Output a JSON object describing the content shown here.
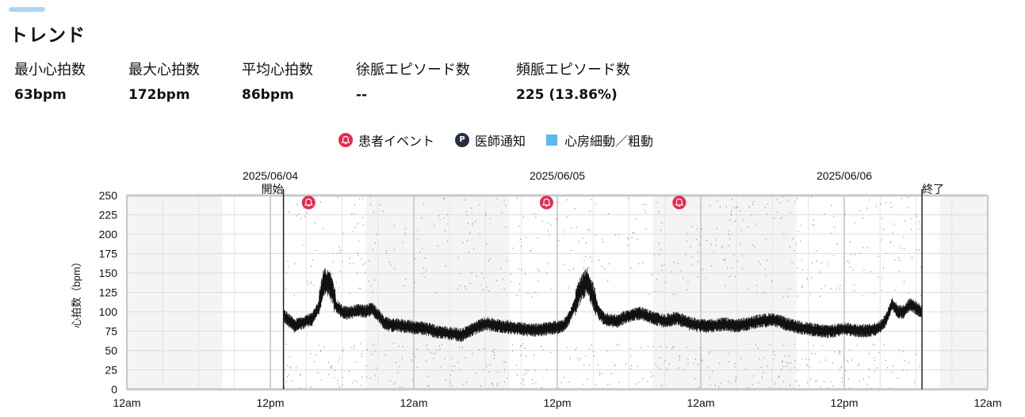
{
  "header": {
    "title": "トレンド"
  },
  "stats": [
    {
      "label": "最小心拍数",
      "value": "63bpm"
    },
    {
      "label": "最大心拍数",
      "value": "172bpm"
    },
    {
      "label": "平均心拍数",
      "value": "86bpm"
    },
    {
      "label": "徐脈エピソード数",
      "value": "--"
    },
    {
      "label": "頻脈エピソード数",
      "value": "225 (13.86%)"
    }
  ],
  "legend": {
    "patient_event": "患者イベント",
    "doctor_notice": "医師通知",
    "doctor_badge": "P",
    "af_label": "心房細動／粗動"
  },
  "colors": {
    "accent_bar": "#a9d6f3",
    "patient_event": "#e8284f",
    "doctor_notice": "#262f40",
    "af": "#5cb8f0",
    "trace": "#111111",
    "shading": "#f4f4f4"
  },
  "chart_data": {
    "type": "scatter",
    "ylabel": "心拍数（bpm）",
    "ylim": [
      0,
      250
    ],
    "yticks": [
      0,
      25,
      50,
      75,
      100,
      125,
      150,
      175,
      200,
      225,
      250
    ],
    "xlim_hours": [
      0,
      72
    ],
    "x_tick_labels": [
      "12am",
      "12pm",
      "12am",
      "12pm",
      "12am",
      "12pm",
      "12am"
    ],
    "date_labels": [
      {
        "hour": 12,
        "text": "2025/06/04"
      },
      {
        "hour": 36,
        "text": "2025/06/05"
      },
      {
        "hour": 60,
        "text": "2025/06/06"
      }
    ],
    "shaded_ranges_hours": [
      [
        0,
        8
      ],
      [
        20,
        32
      ],
      [
        44,
        56
      ],
      [
        68,
        72
      ]
    ],
    "markers": [
      {
        "hour": 13.1,
        "text": "開始"
      },
      {
        "hour": 66.5,
        "text": "終了"
      }
    ],
    "patient_events_hours": [
      15.2,
      35.1,
      46.2
    ],
    "hr_trend": [
      [
        13.1,
        95
      ],
      [
        13.5,
        90
      ],
      [
        14.0,
        82
      ],
      [
        14.5,
        85
      ],
      [
        15.0,
        88
      ],
      [
        15.5,
        90
      ],
      [
        16.0,
        105
      ],
      [
        16.5,
        140
      ],
      [
        17.0,
        135
      ],
      [
        17.5,
        108
      ],
      [
        18.0,
        100
      ],
      [
        18.5,
        98
      ],
      [
        19.0,
        100
      ],
      [
        19.5,
        102
      ],
      [
        20.0,
        100
      ],
      [
        20.5,
        104
      ],
      [
        21.0,
        96
      ],
      [
        21.5,
        86
      ],
      [
        22.0,
        83
      ],
      [
        23.0,
        82
      ],
      [
        24.0,
        80
      ],
      [
        25.0,
        78
      ],
      [
        26.0,
        74
      ],
      [
        27.0,
        72
      ],
      [
        28.0,
        70
      ],
      [
        29.0,
        78
      ],
      [
        30.0,
        85
      ],
      [
        31.0,
        82
      ],
      [
        32.0,
        80
      ],
      [
        33.0,
        78
      ],
      [
        34.0,
        76
      ],
      [
        35.0,
        78
      ],
      [
        36.0,
        80
      ],
      [
        36.5,
        82
      ],
      [
        37.0,
        92
      ],
      [
        37.5,
        110
      ],
      [
        38.0,
        130
      ],
      [
        38.5,
        140
      ],
      [
        39.0,
        120
      ],
      [
        39.5,
        98
      ],
      [
        40.0,
        90
      ],
      [
        41.0,
        88
      ],
      [
        42.0,
        95
      ],
      [
        43.0,
        98
      ],
      [
        44.0,
        92
      ],
      [
        45.0,
        88
      ],
      [
        46.0,
        92
      ],
      [
        47.0,
        85
      ],
      [
        48.0,
        82
      ],
      [
        49.0,
        82
      ],
      [
        50.0,
        84
      ],
      [
        51.0,
        82
      ],
      [
        52.0,
        85
      ],
      [
        53.0,
        88
      ],
      [
        54.0,
        90
      ],
      [
        55.0,
        85
      ],
      [
        56.0,
        80
      ],
      [
        57.0,
        78
      ],
      [
        58.0,
        75
      ],
      [
        59.0,
        75
      ],
      [
        60.0,
        78
      ],
      [
        61.0,
        76
      ],
      [
        62.0,
        75
      ],
      [
        63.0,
        80
      ],
      [
        63.5,
        90
      ],
      [
        64.0,
        110
      ],
      [
        64.5,
        100
      ],
      [
        65.0,
        100
      ],
      [
        65.5,
        110
      ],
      [
        66.0,
        105
      ],
      [
        66.5,
        100
      ]
    ]
  }
}
